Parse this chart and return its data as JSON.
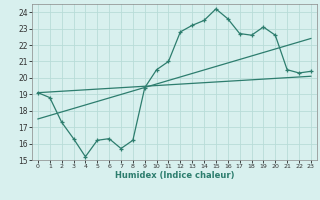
{
  "x_data": [
    0,
    1,
    2,
    3,
    4,
    5,
    6,
    7,
    8,
    9,
    10,
    11,
    12,
    13,
    14,
    15,
    16,
    17,
    18,
    19,
    20,
    21,
    22,
    23
  ],
  "y_data": [
    19.1,
    18.8,
    17.3,
    16.3,
    15.2,
    16.2,
    16.3,
    15.7,
    16.2,
    19.4,
    20.5,
    21.0,
    22.8,
    23.2,
    23.5,
    24.2,
    23.6,
    22.7,
    22.6,
    23.1,
    22.6,
    20.5,
    20.3,
    20.4
  ],
  "trend1_x": [
    0,
    23
  ],
  "trend1_y": [
    19.1,
    20.1
  ],
  "trend2_x": [
    0,
    23
  ],
  "trend2_y": [
    17.5,
    22.4
  ],
  "line_color": "#2d7d6e",
  "bg_color": "#d8f0ee",
  "grid_color": "#b8dcd8",
  "xlabel": "Humidex (Indice chaleur)",
  "ylim": [
    15,
    24.5
  ],
  "xlim": [
    -0.5,
    23.5
  ],
  "yticks": [
    15,
    16,
    17,
    18,
    19,
    20,
    21,
    22,
    23,
    24
  ],
  "xticks": [
    0,
    1,
    2,
    3,
    4,
    5,
    6,
    7,
    8,
    9,
    10,
    11,
    12,
    13,
    14,
    15,
    16,
    17,
    18,
    19,
    20,
    21,
    22,
    23
  ],
  "xtick_labels": [
    "0",
    "1",
    "2",
    "3",
    "4",
    "5",
    "6",
    "7",
    "8",
    "9",
    "10",
    "11",
    "12",
    "13",
    "14",
    "15",
    "16",
    "17",
    "18",
    "19",
    "20",
    "21",
    "22",
    "23"
  ]
}
